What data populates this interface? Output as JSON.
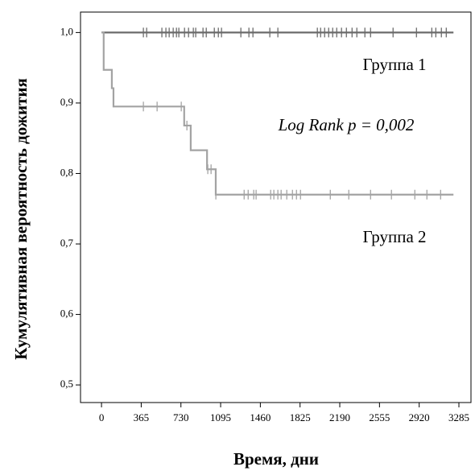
{
  "chart_data": {
    "type": "line",
    "step": true,
    "xlabel": "Время, дни",
    "ylabel": "Кумулятивная вероятность дожития",
    "annotation": "Log Rank p = 0,002",
    "xlim": [
      -193,
      3396
    ],
    "ylim": [
      0.475,
      1.029
    ],
    "xticks": [
      0,
      365,
      730,
      1095,
      1460,
      1825,
      2190,
      2555,
      2920,
      3285
    ],
    "yticks": [
      {
        "value": 0.5,
        "label": "0,5"
      },
      {
        "value": 0.6,
        "label": "0,6"
      },
      {
        "value": 0.7,
        "label": "0,7"
      },
      {
        "value": 0.8,
        "label": "0,8"
      },
      {
        "value": 0.9,
        "label": "0,9"
      },
      {
        "value": 1.0,
        "label": "1,0"
      }
    ],
    "series": [
      {
        "name": "Группа 1",
        "color": "#6b6b6b",
        "x": [
          0,
          3235
        ],
        "values": [
          1,
          1
        ],
        "censored_x": [
          385,
          415,
          555,
          592,
          622,
          659,
          689,
          711,
          763,
          800,
          844,
          866,
          933,
          963,
          1037,
          1074,
          1103,
          1281,
          1355,
          1392,
          1547,
          1621,
          1984,
          2014,
          2051,
          2088,
          2125,
          2162,
          2206,
          2251,
          2303,
          2347,
          2421,
          2473,
          2680,
          2895,
          3036,
          3073,
          3124,
          3169
        ],
        "censored_values": [
          1,
          1,
          1,
          1,
          1,
          1,
          1,
          1,
          1,
          1,
          1,
          1,
          1,
          1,
          1,
          1,
          1,
          1,
          1,
          1,
          1,
          1,
          1,
          1,
          1,
          1,
          1,
          1,
          1,
          1,
          1,
          1,
          1,
          1,
          1,
          1,
          1,
          1,
          1,
          1
        ]
      },
      {
        "name": "Группа 2",
        "color": "#a3a3a3",
        "x": [
          0,
          20,
          20,
          95,
          95,
          110,
          110,
          760,
          760,
          820,
          820,
          970,
          970,
          1050,
          1050,
          3235
        ],
        "values": [
          1,
          1,
          0.947,
          0.947,
          0.921,
          0.921,
          0.895,
          0.895,
          0.868,
          0.868,
          0.833,
          0.833,
          0.806,
          0.806,
          0.77,
          0.77
        ],
        "censored_x": [
          385,
          511,
          733,
          785,
          977,
          1007,
          1051,
          1311,
          1348,
          1399,
          1421,
          1555,
          1584,
          1621,
          1651,
          1703,
          1755,
          1792,
          1829,
          2103,
          2273,
          2473,
          2665,
          2880,
          2991,
          3117
        ],
        "censored_values": [
          0.895,
          0.895,
          0.895,
          0.868,
          0.806,
          0.806,
          0.77,
          0.77,
          0.77,
          0.77,
          0.77,
          0.77,
          0.77,
          0.77,
          0.77,
          0.77,
          0.77,
          0.77,
          0.77,
          0.77,
          0.77,
          0.77,
          0.77,
          0.77,
          0.77,
          0.77
        ]
      }
    ]
  }
}
